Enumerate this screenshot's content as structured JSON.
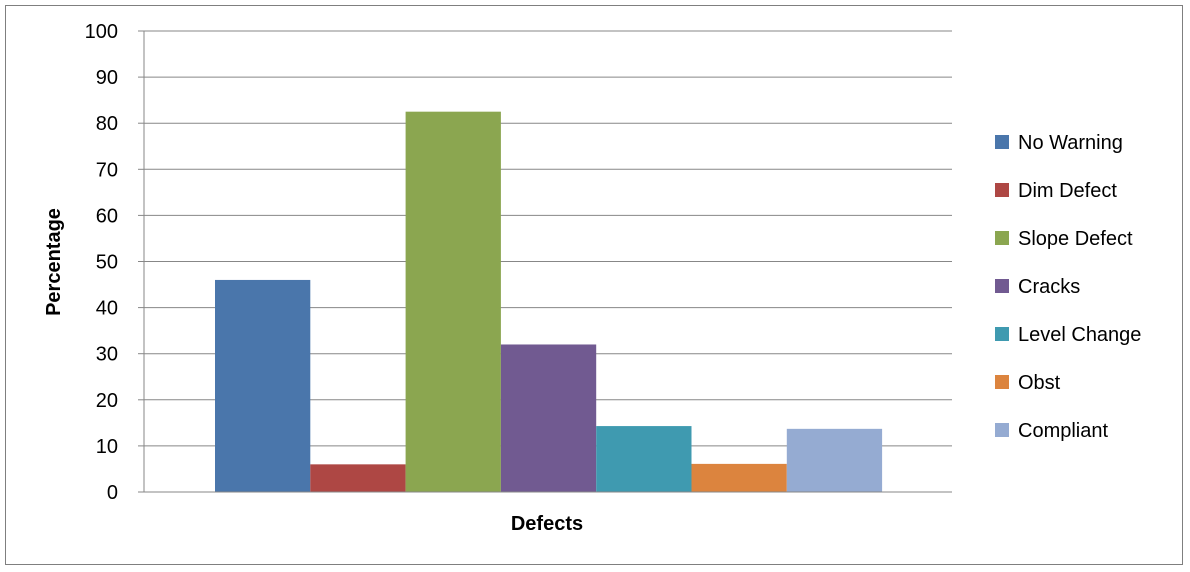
{
  "chart_data": {
    "type": "bar",
    "title": "",
    "xlabel": "Defects",
    "ylabel": "Percentage",
    "ylim": [
      0,
      100
    ],
    "yticks": [
      0,
      10,
      20,
      30,
      40,
      50,
      60,
      70,
      80,
      90,
      100
    ],
    "grid": true,
    "legend_position": "right",
    "series": [
      {
        "name": "No Warning",
        "value": 46,
        "color": "#4a76ab"
      },
      {
        "name": "Dim Defect",
        "value": 6,
        "color": "#ae4744"
      },
      {
        "name": "Slope Defect",
        "value": 82.5,
        "color": "#8ba650"
      },
      {
        "name": "Cracks",
        "value": 32,
        "color": "#715a91"
      },
      {
        "name": "Level Change",
        "value": 14.3,
        "color": "#3f9ab0"
      },
      {
        "name": "Obst",
        "value": 6.1,
        "color": "#dc843e"
      },
      {
        "name": "Compliant",
        "value": 13.7,
        "color": "#95abd2"
      }
    ]
  }
}
